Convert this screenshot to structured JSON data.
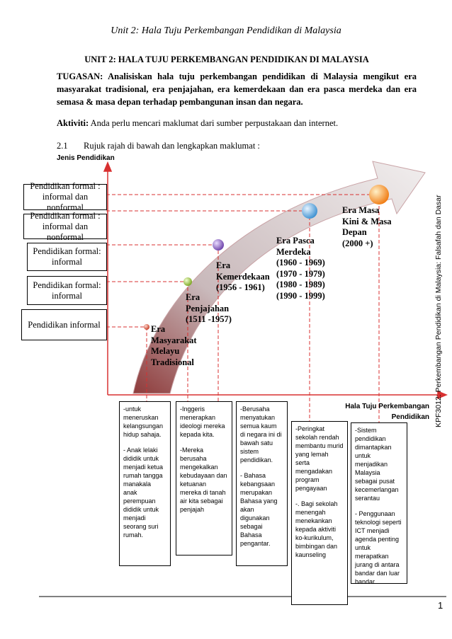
{
  "header": "Unit 2: Hala Tuju Perkembangan Pendidikan di Malaysia",
  "title": "UNIT 2: HALA TUJU PERKEMBANGAN PENDIDIKAN DI MALAYSIA",
  "task": {
    "label": "TUGASAN:",
    "text": "Analisiskan hala tuju perkembangan pendidikan  di Malaysia mengikut era masyarakat tradisional, era penjajahan, era kemerdekaan dan era pasca merdeka dan era semasa & masa depan terhadap pembangunan insan dan negara."
  },
  "activity": {
    "label": "Aktiviti:",
    "text": "Anda perlu mencari maklumat dari sumber perpustakaan dan internet."
  },
  "instruction": {
    "number": "2.1",
    "text": "Rujuk rajah di bawah dan lengkapkan maklumat :"
  },
  "diagram": {
    "y_axis_label": "Jenis Pendidikan",
    "x_axis_label": "Hala Tuju Perkembangan Pendidikan",
    "types": [
      "Pendidikan formal : informal dan nonformal",
      "Pendidikan formal : informal dan nonformal",
      "Pendidikan formal: informal",
      "Pendidikan formal: informal",
      "Pendidikan informal"
    ],
    "eras": [
      {
        "lines": [
          "Era",
          "Masyarakat",
          "Melayu",
          "Tradisional"
        ]
      },
      {
        "lines": [
          "Era",
          "Penjajahan",
          "(1511 -1957)"
        ]
      },
      {
        "lines": [
          "Era",
          "Kemerdekaan",
          "(1956 - 1961)"
        ]
      },
      {
        "lines": [
          "Era Pasca",
          "Merdeka",
          "(1960 - 1969)",
          "(1970 - 1979)",
          "(1980 - 1989)",
          "(1990 - 1999)"
        ]
      },
      {
        "lines": [
          "Era Masa",
          "Kini & Masa",
          "Depan",
          "(2000 +)"
        ]
      }
    ],
    "notes": [
      {
        "paragraphs": [
          "-untuk meneruskan kelangsungan hidup sahaja.",
          "- Anak lelaki dididik untuk menjadi ketua rumah tangga manakala anak perempuan dididik untuk menjadi seorang suri rumah."
        ]
      },
      {
        "paragraphs": [
          "-Inggeris menerapkan ideologi mereka kepada kita.",
          "-Mereka berusaha mengekalkan kebudayaan dan ketuanan mereka di tanah air kita sebagai penjajah"
        ]
      },
      {
        "paragraphs": [
          "-Berusaha menyatukan semua kaum di negara ini di bawah satu sistem pendidikan.",
          "- Bahasa kebangsaan merupakan Bahasa yang akan digunakan sebagai Bahasa pengantar."
        ]
      },
      {
        "paragraphs": [
          "-Peringkat sekolah rendah membantu murid yang lemah serta mengadakan program pengayaan",
          "-. Bagi sekolah menengah menekankan kepada aktiviti ko-kurikulum, bimbingan dan kaunseling"
        ]
      },
      {
        "paragraphs": [
          "-Sistem pendidikan dimantapkan untuk menjadikan Malaysia sebagai pusat kecemerlangan serantau",
          "- Penggunaan teknologi seperti ICT menjadi agenda penting untuk merapatkan jurang di antara bandar dan luar bandar"
        ]
      }
    ]
  },
  "side_text": "KPF3012: Perkembangan Pendidikan di Malaysia: Falsafah dan Dasar",
  "page_number": "1"
}
